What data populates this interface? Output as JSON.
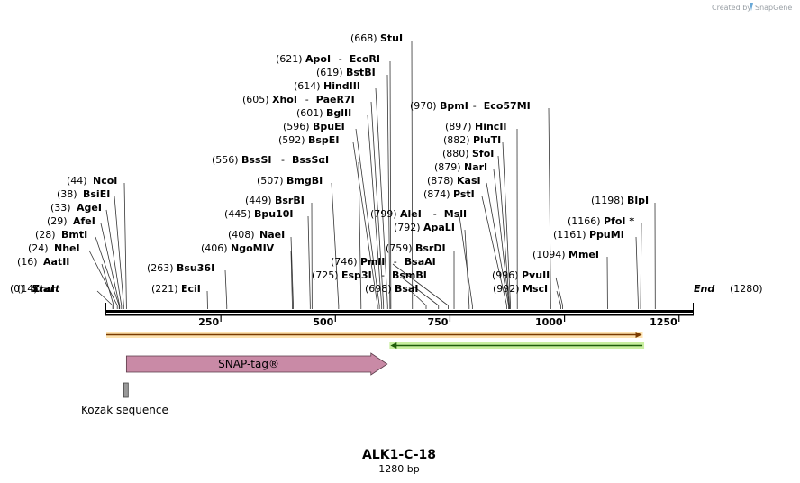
{
  "credit": {
    "prefix": "Created by",
    "brand": "SnapGene"
  },
  "map": {
    "name": "ALK1-C-18",
    "length_label": "1280 bp",
    "length": 1280,
    "start_label": "Start",
    "start_pos": "(0)",
    "end_label": "End",
    "end_pos": "(1280)",
    "ticks": [
      250,
      500,
      750,
      1000,
      1250
    ]
  },
  "enzymes": [
    {
      "pos": 14,
      "label": "(14)",
      "name": "ZraI"
    },
    {
      "pos": 16,
      "label": "(16)",
      "name": "AatII"
    },
    {
      "pos": 24,
      "label": "(24)",
      "name": "NheI"
    },
    {
      "pos": 28,
      "label": "(28)",
      "name": "BmtI"
    },
    {
      "pos": 29,
      "label": "(29)",
      "name": "AfeI"
    },
    {
      "pos": 33,
      "label": "(33)",
      "name": "AgeI"
    },
    {
      "pos": 38,
      "label": "(38)",
      "name": "BsiEI"
    },
    {
      "pos": 44,
      "label": "(44)",
      "name": "NcoI"
    },
    {
      "pos": 221,
      "label": "(221)",
      "name": "EciI"
    },
    {
      "pos": 263,
      "label": "(263)",
      "name": "Bsu36I"
    },
    {
      "pos": 406,
      "label": "(406)",
      "name": "NgoMIV"
    },
    {
      "pos": 408,
      "label": "(408)",
      "name": "NaeI"
    },
    {
      "pos": 445,
      "label": "(445)",
      "name": "Bpu10I"
    },
    {
      "pos": 449,
      "label": "(449)",
      "name": "BsrBI"
    },
    {
      "pos": 507,
      "label": "(507)",
      "name": "BmgBI"
    },
    {
      "pos": 556,
      "label": "(556)",
      "name": "BssSI",
      "name2": "BssSαI"
    },
    {
      "pos": 592,
      "label": "(592)",
      "name": "BspEI"
    },
    {
      "pos": 596,
      "label": "(596)",
      "name": "BpuEI"
    },
    {
      "pos": 601,
      "label": "(601)",
      "name": "BglII"
    },
    {
      "pos": 605,
      "label": "(605)",
      "name": "XhoI",
      "name2": "PaeR7I"
    },
    {
      "pos": 614,
      "label": "(614)",
      "name": "HindIII"
    },
    {
      "pos": 619,
      "label": "(619)",
      "name": "BstBI"
    },
    {
      "pos": 621,
      "label": "(621)",
      "name": "ApoI",
      "name2": "EcoRI"
    },
    {
      "pos": 668,
      "label": "(668)",
      "name": "StuI"
    },
    {
      "pos": 698,
      "label": "(698)",
      "name": "BsaI"
    },
    {
      "pos": 725,
      "label": "(725)",
      "name": "Esp3I",
      "name2": "BsmBI"
    },
    {
      "pos": 746,
      "label": "(746)",
      "name": "PmlI",
      "name2": "BsaAI"
    },
    {
      "pos": 759,
      "label": "(759)",
      "name": "BsrDI"
    },
    {
      "pos": 792,
      "label": "(792)",
      "name": "ApaLI"
    },
    {
      "pos": 799,
      "label": "(799)",
      "name": "AleI",
      "name2": "MslI"
    },
    {
      "pos": 874,
      "label": "(874)",
      "name": "PstI"
    },
    {
      "pos": 878,
      "label": "(878)",
      "name": "KasI"
    },
    {
      "pos": 879,
      "label": "(879)",
      "name": "NarI"
    },
    {
      "pos": 880,
      "label": "(880)",
      "name": "SfoI"
    },
    {
      "pos": 882,
      "label": "(882)",
      "name": "PluTI"
    },
    {
      "pos": 897,
      "label": "(897)",
      "name": "HincII"
    },
    {
      "pos": 970,
      "label": "(970)",
      "name": "BpmI",
      "name2": "Eco57MI"
    },
    {
      "pos": 992,
      "label": "(992)",
      "name": "MscI"
    },
    {
      "pos": 996,
      "label": "(996)",
      "name": "PvuII"
    },
    {
      "pos": 1094,
      "label": "(1094)",
      "name": "MmeI"
    },
    {
      "pos": 1161,
      "label": "(1161)",
      "name": "PpuMI"
    },
    {
      "pos": 1166,
      "label": "(1166)",
      "name": "PfoI *"
    },
    {
      "pos": 1198,
      "label": "(1198)",
      "name": "BlpI"
    }
  ],
  "features": {
    "orf_forward": {
      "start": 1,
      "end": 1167,
      "color": "#f5a623"
    },
    "orf_reverse": {
      "start": 622,
      "end": 1170,
      "color": "#7ed321"
    },
    "snap_tag": {
      "label": "SNAP-tag®",
      "start": 44,
      "end": 613,
      "color": "#c98aa6"
    },
    "kozak": {
      "label": "Kozak sequence",
      "start": 38,
      "end": 47,
      "color": "#999999"
    }
  }
}
